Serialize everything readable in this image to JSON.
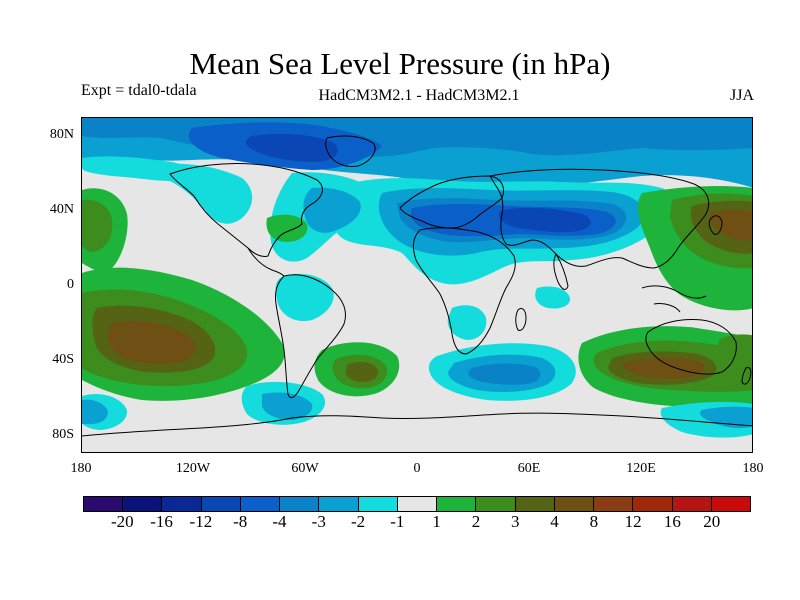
{
  "title": "Mean Sea Level Pressure (in hPa)",
  "subtitle_left": "Expt = tdal0-tdala",
  "subtitle_center": "HadCM3M2.1 - HadCM3M2.1",
  "subtitle_right": "JJA",
  "lat_labels": [
    "80N",
    "40N",
    "0",
    "40S",
    "80S"
  ],
  "lon_labels": [
    "180",
    "120W",
    "60W",
    "0",
    "60E",
    "120E",
    "180"
  ],
  "colorbar": {
    "colors": [
      "#2a0a6e",
      "#0a1478",
      "#0a2896",
      "#0a46b4",
      "#0a5fc8",
      "#0a82c8",
      "#0aa0d2",
      "#14dcdc",
      "#e6e6e6",
      "#1eb43c",
      "#3c8c1e",
      "#556414",
      "#6e5014",
      "#8c3c14",
      "#a0280a",
      "#b41414",
      "#c80a0a"
    ],
    "labels": [
      "-20",
      "-16",
      "-12",
      "-8",
      "-4",
      "-3",
      "-2",
      "-1",
      "1",
      "2",
      "3",
      "4",
      "8",
      "12",
      "16",
      "20"
    ]
  },
  "map_colors": {
    "neutral": "#e6e6e6",
    "neg1": "#14dcdc",
    "neg2": "#0aa0d2",
    "neg3": "#0a82c8",
    "neg4": "#0a5fc8",
    "neg5": "#0a46b4",
    "pos1": "#1eb43c",
    "pos2": "#3c8c1e",
    "pos3": "#556414",
    "pos4": "#6e5014"
  }
}
